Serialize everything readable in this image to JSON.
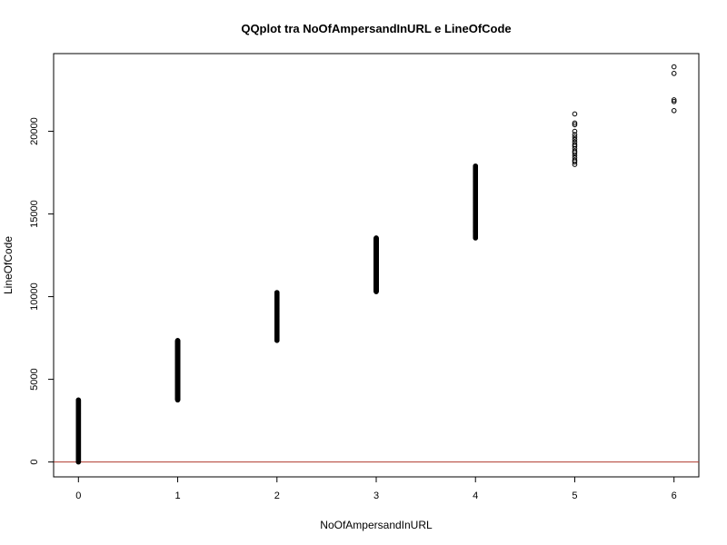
{
  "chart_data": {
    "type": "scatter",
    "title": "QQplot tra NoOfAmpersandInURL e LineOfCode",
    "xlabel": "NoOfAmpersandInURL",
    "ylabel": "LineOfCode",
    "xlim": [
      -0.25,
      6.25
    ],
    "ylim": [
      -900,
      24700
    ],
    "x_ticks": [
      0,
      1,
      2,
      3,
      4,
      5,
      6
    ],
    "y_ticks": [
      0,
      5000,
      10000,
      15000,
      20000
    ],
    "grid": false,
    "legend": "none",
    "point_color": "#000000",
    "reference_line": {
      "y": 0,
      "color": "#b03a2e"
    },
    "groups": [
      {
        "x": 0,
        "y_min": 0,
        "y_max": 3750,
        "dense": true
      },
      {
        "x": 1,
        "y_min": 3750,
        "y_max": 7350,
        "dense": true
      },
      {
        "x": 2,
        "y_min": 7350,
        "y_max": 10250,
        "dense": true
      },
      {
        "x": 3,
        "y_min": 10300,
        "y_max": 13550,
        "dense": true
      },
      {
        "x": 4,
        "y_min": 13550,
        "y_max": 17900,
        "dense": true
      },
      {
        "x": 5,
        "y_min": null,
        "y_max": null,
        "dense": false,
        "values": [
          18000,
          18150,
          18250,
          18400,
          18550,
          18700,
          18800,
          18950,
          19100,
          19200,
          19350,
          19500,
          19650,
          19800,
          20000,
          20400,
          20500,
          21050
        ]
      },
      {
        "x": 6,
        "y_min": null,
        "y_max": null,
        "dense": false,
        "values": [
          21250,
          21800,
          21900,
          23500,
          23900
        ]
      }
    ]
  }
}
